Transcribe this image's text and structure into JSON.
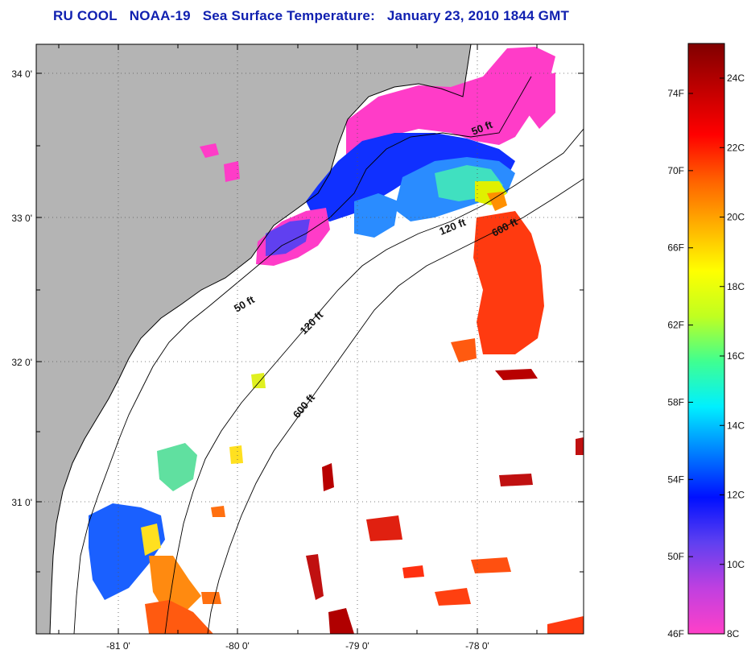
{
  "title": {
    "source": "RU COOL",
    "satellite": "NOAA-19",
    "product": "Sea Surface Temperature:",
    "datetime": "January 23, 2010 1844 GMT"
  },
  "map": {
    "lat_ticks": [
      "34 0'",
      "33 0'",
      "32 0'",
      "31 0'"
    ],
    "lon_ticks": [
      "-81 0'",
      "-80 0'",
      "-79 0'",
      "-78 0'"
    ],
    "contour_labels": [
      "50 ft",
      "120 ft",
      "600 ft",
      "50 ft",
      "120 ft",
      "600 ft"
    ],
    "land_color": "#b4b4b4",
    "water_color": "#ffffff"
  },
  "colorbar": {
    "fahrenheit": [
      "74F",
      "70F",
      "66F",
      "62F",
      "58F",
      "54F",
      "50F",
      "46F"
    ],
    "celsius": [
      "24C",
      "22C",
      "20C",
      "18C",
      "16C",
      "14C",
      "12C",
      "10C",
      "8C"
    ],
    "stops": [
      "#ff40c8",
      "#c040e0",
      "#6040f0",
      "#0010ff",
      "#0080ff",
      "#00f0ff",
      "#40ff90",
      "#c0ff20",
      "#ffff00",
      "#ffb000",
      "#ff6000",
      "#ff0000",
      "#c00000",
      "#800000"
    ]
  }
}
